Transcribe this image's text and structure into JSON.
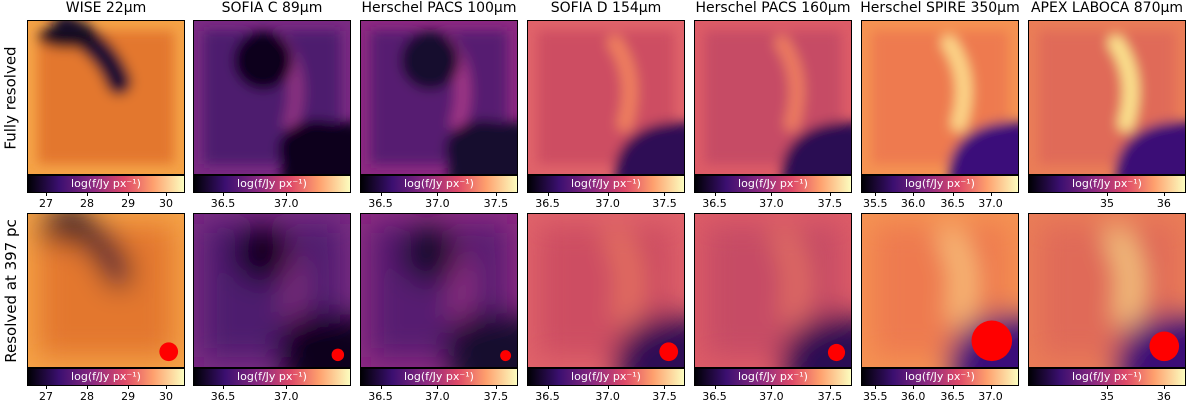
{
  "row_labels": [
    "Fully resolved",
    "Resolved at 397 pc"
  ],
  "colorbar_label": "log(f/Jy px⁻¹)",
  "colormap": [
    "#000004",
    "#3b0f70",
    "#8c2981",
    "#de4968",
    "#fe9f6d",
    "#fcfdbf"
  ],
  "beam_color": "#ff0000",
  "panels": [
    {
      "title": "WISE 22μm",
      "ticks": [
        "27",
        "28",
        "29",
        "30"
      ],
      "tick_pos": [
        0.12,
        0.38,
        0.64,
        0.88
      ],
      "beam_size": 0.12,
      "style": {
        "bg": "#e3772f",
        "edge": "#f5a347",
        "dark": "#120722",
        "arc_dark": true,
        "arc": "#1d0a33"
      }
    },
    {
      "title": "SOFIA C 89μm",
      "ticks": [
        "36.5",
        "37.0"
      ],
      "tick_pos": [
        0.19,
        0.59
      ],
      "beam_size": 0.08,
      "style": {
        "bg": "#4d1d6e",
        "edge": "#7a2a82",
        "dark": "#10051f",
        "arc": "#8a3080"
      }
    },
    {
      "title": "Herschel PACS 100μm",
      "ticks": [
        "36.5",
        "37.0",
        "37.5"
      ],
      "tick_pos": [
        0.13,
        0.49,
        0.86
      ],
      "beam_size": 0.07,
      "style": {
        "bg": "#561f71",
        "edge": "#8c2981",
        "dark": "#170a2e",
        "arc": "#9e3585"
      }
    },
    {
      "title": "SOFIA D 154μm",
      "ticks": [
        "36.5",
        "37.0",
        "37.5"
      ],
      "tick_pos": [
        0.13,
        0.51,
        0.87
      ],
      "beam_size": 0.12,
      "style": {
        "bg": "#cd4d62",
        "edge": "#e0636a",
        "dark": "#2e0f55",
        "arc": "#ef7f5e"
      }
    },
    {
      "title": "Herschel PACS 160μm",
      "ticks": [
        "36.5",
        "37.0",
        "37.5"
      ],
      "tick_pos": [
        0.13,
        0.49,
        0.86
      ],
      "beam_size": 0.11,
      "style": {
        "bg": "#c64b65",
        "edge": "#dd5c67",
        "dark": "#2b0e52",
        "arc": "#ec7a60"
      }
    },
    {
      "title": "Herschel SPIRE 350μm",
      "ticks": [
        "35.5",
        "36.0",
        "36.5",
        "37.0"
      ],
      "tick_pos": [
        0.09,
        0.33,
        0.58,
        0.82
      ],
      "beam_size": 0.26,
      "style": {
        "bg": "#ee7a4f",
        "edge": "#f59352",
        "dark": "#3a107a",
        "arc": "#fcd789"
      }
    },
    {
      "title": "APEX LABOCA 870μm",
      "ticks": [
        "35",
        "36"
      ],
      "tick_pos": [
        0.5,
        0.86
      ],
      "beam_size": 0.19,
      "style": {
        "bg": "#e06a58",
        "edge": "#ea7d57",
        "dark": "#3a0f76",
        "arc": "#fce48f"
      }
    }
  ]
}
